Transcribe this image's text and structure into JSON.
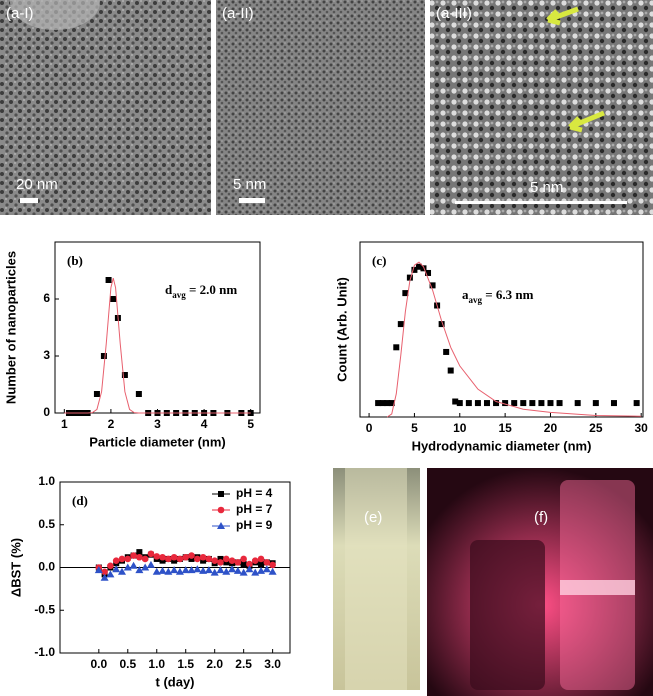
{
  "images": [
    {
      "label": "(a-I)",
      "scale": "20 nm"
    },
    {
      "label": "(a-II)",
      "scale": "5 nm"
    },
    {
      "label": "(a-III)",
      "scale": "5 nm"
    }
  ],
  "photos": [
    {
      "label": "(e)"
    },
    {
      "label": "(f)"
    }
  ],
  "chart_data": [
    {
      "type": "scatter",
      "panel_label": "(b)",
      "xlabel": "Particle diameter (nm)",
      "ylabel": "Number of nanoparticles",
      "annotation": {
        "symbol": "d",
        "subscript": "avg",
        "text": " = 2.0 nm"
      },
      "xlim": [
        0.8,
        5.2
      ],
      "ylim": [
        0,
        9
      ],
      "xticks": [
        1,
        2,
        3,
        4,
        5
      ],
      "yticks": [
        0,
        3,
        6
      ],
      "series": [
        {
          "style": "marker",
          "marker": "square",
          "color": "#000000",
          "x": [
            1.1,
            1.2,
            1.3,
            1.4,
            1.5,
            1.7,
            1.85,
            1.95,
            2.05,
            2.15,
            2.3,
            2.6,
            2.8,
            3.0,
            3.2,
            3.4,
            3.6,
            3.8,
            4.0,
            4.2,
            4.5,
            4.8,
            5.0
          ],
          "values": [
            0,
            0,
            0,
            0,
            0,
            1,
            3,
            7,
            6,
            5,
            2,
            1,
            0,
            0,
            0,
            0,
            0,
            0,
            0,
            0,
            0,
            0,
            0
          ]
        },
        {
          "style": "line",
          "color": "#e8606e",
          "x": [
            1.0,
            1.5,
            1.6,
            1.7,
            1.8,
            1.9,
            2.0,
            2.05,
            2.1,
            2.2,
            2.3,
            2.4,
            2.5,
            2.6,
            5.0
          ],
          "values": [
            0,
            0,
            0.018,
            0.19,
            1.12,
            3.65,
            6.6,
            7.1,
            6.6,
            3.65,
            1.12,
            0.19,
            0.018,
            0,
            0
          ]
        }
      ]
    },
    {
      "type": "scatter",
      "panel_label": "(c)",
      "xlabel": "Hydrodynamic diameter (nm)",
      "ylabel": "Count (Arb. Unit)",
      "annotation": {
        "symbol": "a",
        "subscript": "avg",
        "text": " = 6.3 nm"
      },
      "xlim": [
        -1,
        30.2
      ],
      "ylim": [
        0,
        1.13
      ],
      "xticks": [
        0,
        5,
        10,
        15,
        20,
        25,
        30
      ],
      "series": [
        {
          "style": "marker",
          "marker": "square",
          "color": "#000000",
          "x": [
            1,
            1.5,
            2,
            2.5,
            3,
            3.5,
            4,
            4.5,
            5,
            5.5,
            6,
            6.5,
            7,
            7.5,
            8,
            8.5,
            9,
            9.5,
            10,
            11,
            12,
            13,
            14,
            15,
            16,
            17,
            18,
            19,
            20,
            21,
            23,
            25,
            27,
            29.5
          ],
          "values": [
            0.09,
            0.09,
            0.09,
            0.09,
            0.45,
            0.6,
            0.8,
            0.9,
            0.95,
            0.97,
            0.96,
            0.93,
            0.85,
            0.72,
            0.6,
            0.42,
            0.3,
            0.1,
            0.09,
            0.09,
            0.09,
            0.09,
            0.09,
            0.09,
            0.09,
            0.09,
            0.09,
            0.09,
            0.09,
            0.09,
            0.09,
            0.09,
            0.09,
            0.09
          ]
        },
        {
          "style": "line",
          "color": "#e8606e",
          "x": [
            2,
            2.5,
            3,
            3.5,
            4,
            4.5,
            5,
            5.5,
            6,
            7,
            8,
            9,
            10,
            12,
            14,
            17,
            20,
            25,
            30
          ],
          "values": [
            0,
            0.02,
            0.15,
            0.4,
            0.68,
            0.88,
            0.98,
            1.0,
            0.97,
            0.82,
            0.62,
            0.45,
            0.33,
            0.18,
            0.1,
            0.05,
            0.03,
            0.01,
            0.005
          ]
        }
      ]
    },
    {
      "type": "scatter",
      "panel_label": "(d)",
      "xlabel": "t (day)",
      "ylabel": "ΔBST (%)",
      "legend": "upper right",
      "reference_line": 0,
      "xlim": [
        -0.67,
        3.3
      ],
      "ylim": [
        -1,
        1
      ],
      "xticks": [
        {
          "value": 0,
          "label": "0.0"
        },
        {
          "value": 0.5,
          "label": "0.5"
        },
        {
          "value": 1,
          "label": "1.0"
        },
        {
          "value": 1.5,
          "label": "1.5"
        },
        {
          "value": 2,
          "label": "2.0"
        },
        {
          "value": 2.5,
          "label": "2.5"
        },
        {
          "value": 3,
          "label": "3.0"
        }
      ],
      "yticks": [
        {
          "value": -1,
          "label": "-1.0"
        },
        {
          "value": -0.5,
          "label": "-0.5"
        },
        {
          "value": 0,
          "label": "0.0"
        },
        {
          "value": 0.5,
          "label": "0.5"
        },
        {
          "value": 1,
          "label": "1.0"
        }
      ],
      "series": [
        {
          "name": "pH = 4",
          "style": "marker",
          "marker": "square",
          "color": "#000000",
          "x": [
            0,
            0.1,
            0.2,
            0.3,
            0.4,
            0.5,
            0.6,
            0.7,
            0.8,
            0.9,
            1.0,
            1.1,
            1.2,
            1.3,
            1.4,
            1.5,
            1.6,
            1.7,
            1.8,
            1.9,
            2.0,
            2.1,
            2.2,
            2.3,
            2.4,
            2.5,
            2.6,
            2.7,
            2.8,
            2.9,
            3.0
          ],
          "values": [
            0,
            -0.08,
            0,
            0.05,
            0.08,
            0.12,
            0.14,
            0.18,
            0.12,
            0.15,
            0.1,
            0.08,
            0.1,
            0.08,
            0.1,
            0.12,
            0.1,
            0.12,
            0.08,
            0.1,
            0.05,
            0.1,
            0.06,
            0.05,
            0.06,
            0.04,
            0.02,
            0.06,
            0.04,
            0.06,
            0.05
          ]
        },
        {
          "name": "pH = 7",
          "style": "marker",
          "marker": "circle",
          "color": "#e8283c",
          "x": [
            0,
            0.1,
            0.2,
            0.3,
            0.4,
            0.5,
            0.6,
            0.7,
            0.8,
            0.9,
            1.0,
            1.1,
            1.2,
            1.3,
            1.4,
            1.5,
            1.6,
            1.7,
            1.8,
            1.9,
            2.0,
            2.1,
            2.2,
            2.3,
            2.4,
            2.5,
            2.6,
            2.7,
            2.8,
            2.9,
            3.0
          ],
          "values": [
            0,
            -0.05,
            0.02,
            0.08,
            0.1,
            0.1,
            0.14,
            0.12,
            0.1,
            0.16,
            0.13,
            0.12,
            0.1,
            0.12,
            0.1,
            0.12,
            0.14,
            0.1,
            0.12,
            0.1,
            0.08,
            0.06,
            0.1,
            0.08,
            0.06,
            0.1,
            0.04,
            0.08,
            0.1,
            0.06,
            0.03
          ]
        },
        {
          "name": "pH = 9",
          "style": "marker",
          "marker": "triangle",
          "color": "#2e52c8",
          "x": [
            0,
            0.1,
            0.2,
            0.3,
            0.4,
            0.5,
            0.6,
            0.7,
            0.8,
            0.9,
            1.0,
            1.1,
            1.2,
            1.3,
            1.4,
            1.5,
            1.6,
            1.7,
            1.8,
            1.9,
            2.0,
            2.1,
            2.2,
            2.3,
            2.4,
            2.5,
            2.6,
            2.7,
            2.8,
            2.9,
            3.0
          ],
          "values": [
            -0.03,
            -0.12,
            -0.08,
            -0.02,
            -0.05,
            0,
            0.02,
            -0.03,
            0,
            0.03,
            -0.05,
            -0.04,
            -0.05,
            -0.03,
            -0.05,
            -0.03,
            -0.03,
            -0.02,
            -0.04,
            -0.03,
            -0.06,
            -0.03,
            -0.05,
            -0.02,
            -0.04,
            -0.06,
            -0.02,
            -0.06,
            -0.04,
            -0.02,
            -0.05
          ]
        }
      ]
    }
  ]
}
